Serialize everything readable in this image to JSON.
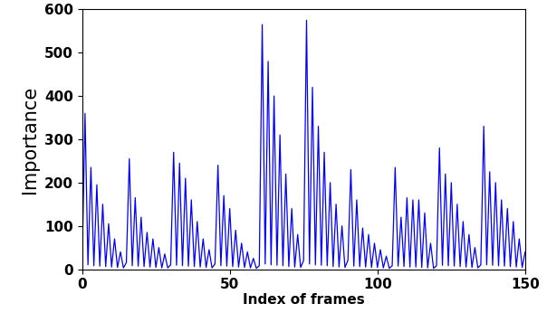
{
  "chart_data": {
    "type": "line",
    "x_label": "Index of frames",
    "y_label": "Importance",
    "x": [
      0,
      1,
      2,
      3,
      4,
      5,
      6,
      7,
      8,
      9,
      10,
      11,
      12,
      13,
      14,
      15,
      16,
      17,
      18,
      19,
      20,
      21,
      22,
      23,
      24,
      25,
      26,
      27,
      28,
      29,
      30,
      31,
      32,
      33,
      34,
      35,
      36,
      37,
      38,
      39,
      40,
      41,
      42,
      43,
      44,
      45,
      46,
      47,
      48,
      49,
      50,
      51,
      52,
      53,
      54,
      55,
      56,
      57,
      58,
      59,
      60,
      61,
      62,
      63,
      64,
      65,
      66,
      67,
      68,
      69,
      70,
      71,
      72,
      73,
      74,
      75,
      76,
      77,
      78,
      79,
      80,
      81,
      82,
      83,
      84,
      85,
      86,
      87,
      88,
      89,
      90,
      91,
      92,
      93,
      94,
      95,
      96,
      97,
      98,
      99,
      100,
      101,
      102,
      103,
      104,
      105,
      106,
      107,
      108,
      109,
      110,
      111,
      112,
      113,
      114,
      115,
      116,
      117,
      118,
      119,
      120,
      121,
      122,
      123,
      124,
      125,
      126,
      127,
      128,
      129,
      130,
      131,
      132,
      133,
      134,
      135,
      136,
      137,
      138,
      139,
      140,
      141,
      142,
      143,
      144,
      145,
      146,
      147,
      148,
      149,
      150
    ],
    "series": [
      {
        "name": "Importance",
        "color": "#0000ff",
        "values": [
          0,
          360,
          10,
          235,
          8,
          195,
          7,
          150,
          6,
          105,
          5,
          70,
          4,
          40,
          3,
          15,
          255,
          8,
          165,
          7,
          120,
          6,
          85,
          5,
          70,
          4,
          50,
          3,
          35,
          3,
          10,
          270,
          9,
          245,
          8,
          210,
          7,
          160,
          6,
          110,
          5,
          70,
          4,
          45,
          3,
          12,
          240,
          8,
          170,
          7,
          140,
          6,
          90,
          5,
          60,
          4,
          40,
          3,
          25,
          2,
          8,
          565,
          12,
          480,
          10,
          400,
          9,
          310,
          8,
          220,
          6,
          140,
          5,
          80,
          4,
          20,
          575,
          12,
          420,
          10,
          330,
          9,
          270,
          8,
          200,
          6,
          150,
          5,
          100,
          4,
          20,
          230,
          7,
          160,
          6,
          95,
          5,
          80,
          4,
          60,
          4,
          45,
          3,
          30,
          2,
          8,
          235,
          7,
          120,
          6,
          165,
          5,
          160,
          5,
          160,
          4,
          130,
          3,
          60,
          2,
          8,
          280,
          9,
          220,
          8,
          200,
          7,
          150,
          6,
          110,
          5,
          80,
          4,
          50,
          3,
          10,
          330,
          10,
          225,
          9,
          200,
          8,
          160,
          7,
          140,
          6,
          110,
          5,
          70,
          4,
          40
        ]
      }
    ],
    "xlim": [
      0,
      150
    ],
    "xticks": [
      0,
      50,
      100,
      150
    ],
    "ylim": [
      0,
      600
    ],
    "yticks": [
      0,
      100,
      200,
      300,
      400,
      500,
      600
    ],
    "grid": false
  }
}
